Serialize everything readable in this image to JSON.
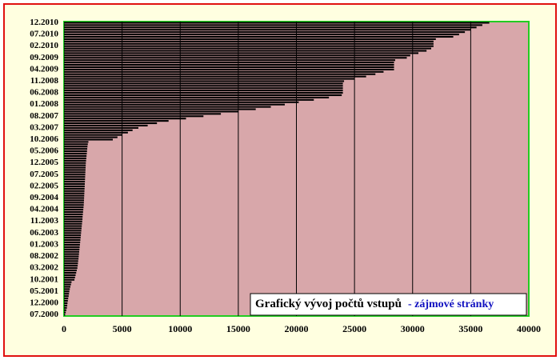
{
  "chart_data": {
    "type": "hbar",
    "title": "Grafický vývoj počtů vstupů",
    "subtitle": "- zájmové stránky",
    "categories": [
      "07.2000",
      null,
      null,
      null,
      null,
      "12.2000",
      null,
      null,
      null,
      null,
      "05.2001",
      null,
      null,
      null,
      null,
      "10.2001",
      null,
      null,
      null,
      null,
      "03.2002",
      null,
      null,
      null,
      null,
      "08.2002",
      null,
      null,
      null,
      null,
      "01.2003",
      null,
      null,
      null,
      null,
      "06.2003",
      null,
      null,
      null,
      null,
      "11.2003",
      null,
      null,
      null,
      null,
      "04.2004",
      null,
      null,
      null,
      null,
      "09.2004",
      null,
      null,
      null,
      null,
      "02.2005",
      null,
      null,
      null,
      null,
      "07.2005",
      null,
      null,
      null,
      null,
      "12.2005",
      null,
      null,
      null,
      null,
      "05.2006",
      null,
      null,
      null,
      null,
      "10.2006",
      null,
      null,
      null,
      null,
      "03.2007",
      null,
      null,
      null,
      null,
      "08.2007",
      null,
      null,
      null,
      null,
      "01.2008",
      null,
      null,
      null,
      null,
      "06.2008",
      null,
      null,
      null,
      null,
      "11.2008",
      null,
      null,
      null,
      null,
      "04.2009",
      null,
      null,
      null,
      null,
      "09.2009",
      null,
      null,
      null,
      null,
      "02.2010",
      null,
      null,
      null,
      null,
      "07.2010",
      null,
      null,
      null,
      null,
      "12.2010"
    ],
    "values": [
      100,
      150,
      200,
      250,
      280,
      300,
      330,
      360,
      400,
      430,
      460,
      500,
      550,
      600,
      650,
      900,
      950,
      1000,
      1050,
      1100,
      1150,
      1180,
      1200,
      1220,
      1250,
      1270,
      1290,
      1310,
      1330,
      1350,
      1370,
      1390,
      1410,
      1430,
      1450,
      1470,
      1490,
      1510,
      1530,
      1550,
      1570,
      1590,
      1600,
      1620,
      1640,
      1660,
      1680,
      1700,
      1710,
      1720,
      1730,
      1740,
      1750,
      1760,
      1770,
      1780,
      1790,
      1800,
      1810,
      1820,
      1830,
      1840,
      1850,
      1860,
      1870,
      1880,
      1900,
      1920,
      1940,
      1960,
      1980,
      2000,
      2020,
      2050,
      2100,
      4200,
      4600,
      5000,
      5500,
      5900,
      6400,
      7200,
      8000,
      9000,
      10500,
      12000,
      13500,
      15000,
      16500,
      17800,
      19000,
      20200,
      21500,
      22800,
      23900,
      24000,
      24000,
      24000,
      24000,
      24000,
      24100,
      25000,
      26000,
      26800,
      27500,
      28400,
      28400,
      28400,
      28400,
      28500,
      29500,
      29800,
      30500,
      31200,
      31600,
      31800,
      31800,
      31800,
      32000,
      33500,
      34000,
      34500,
      35000,
      35500,
      36000,
      36600
    ],
    "color": "#000000",
    "xlim": [
      0,
      40000
    ],
    "xticks": [
      0,
      5000,
      10000,
      15000,
      20000,
      25000,
      30000,
      35000,
      40000
    ],
    "grid": true
  }
}
